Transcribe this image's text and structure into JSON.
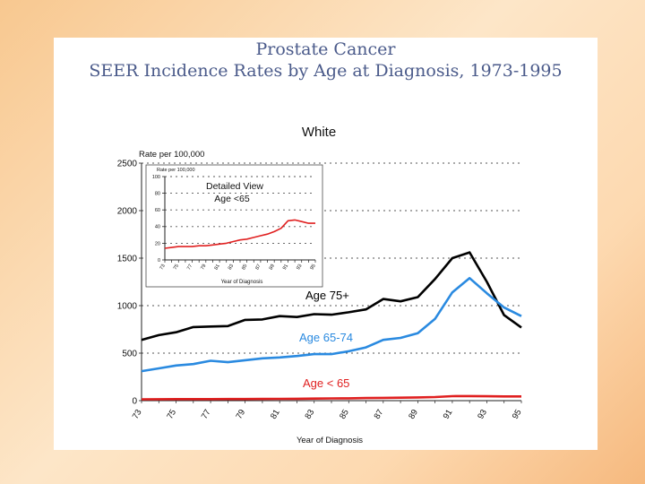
{
  "slide": {
    "title_line1": "Prostate Cancer",
    "title_line2": "SEER Incidence Rates by Age at Diagnosis, 1973-1995"
  },
  "chart_data": [
    {
      "type": "line",
      "title": "White",
      "ylabel": "Rate per 100,000",
      "xlabel": "Year of Diagnosis",
      "ylim": [
        0,
        2500
      ],
      "xlim": [
        73,
        95
      ],
      "yticks": [
        0,
        500,
        1000,
        1500,
        2000,
        2500
      ],
      "xticks": [
        "73",
        "75",
        "77",
        "79",
        "81",
        "83",
        "85",
        "87",
        "89",
        "91",
        "93",
        "95"
      ],
      "grid": "dotted horizontal",
      "x": [
        73,
        74,
        75,
        76,
        77,
        78,
        79,
        80,
        81,
        82,
        83,
        84,
        85,
        86,
        87,
        88,
        89,
        90,
        91,
        92,
        93,
        94,
        95
      ],
      "series": [
        {
          "name": "Age 75+",
          "color": "#000000",
          "values": [
            640,
            690,
            720,
            775,
            780,
            785,
            850,
            855,
            890,
            880,
            910,
            905,
            930,
            960,
            1070,
            1045,
            1090,
            1280,
            1500,
            1560,
            1250,
            900,
            770
          ]
        },
        {
          "name": "Age 65-74",
          "color": "#2a8ae0",
          "values": [
            310,
            340,
            370,
            385,
            420,
            405,
            425,
            445,
            455,
            470,
            490,
            490,
            520,
            560,
            640,
            660,
            710,
            860,
            1140,
            1290,
            1130,
            980,
            890
          ]
        },
        {
          "name": "Age < 65",
          "color": "#e02020",
          "values": [
            14,
            15,
            16,
            16,
            16,
            17,
            17,
            18,
            19,
            20,
            22,
            24,
            25,
            27,
            29,
            31,
            34,
            38,
            47,
            48,
            46,
            44,
            44
          ]
        }
      ]
    },
    {
      "type": "line",
      "title": "Detailed View",
      "subtitle": "Age <65",
      "ylabel": "Rate per 100,000",
      "xlabel": "Year of Diagnosis",
      "ylim": [
        0,
        100
      ],
      "yticks": [
        0,
        20,
        40,
        60,
        80,
        100
      ],
      "xticks": [
        "73",
        "75",
        "77",
        "79",
        "81",
        "83",
        "85",
        "87",
        "89",
        "91",
        "93",
        "95"
      ],
      "x": [
        73,
        74,
        75,
        76,
        77,
        78,
        79,
        80,
        81,
        82,
        83,
        84,
        85,
        86,
        87,
        88,
        89,
        90,
        91,
        92,
        93,
        94,
        95
      ],
      "series": [
        {
          "name": "Age < 65",
          "color": "#e02020",
          "values": [
            14,
            15,
            16,
            16,
            16,
            17,
            17,
            18,
            19,
            20,
            22,
            24,
            25,
            27,
            29,
            31,
            34,
            38,
            47,
            48,
            46,
            44,
            44
          ]
        }
      ]
    }
  ]
}
